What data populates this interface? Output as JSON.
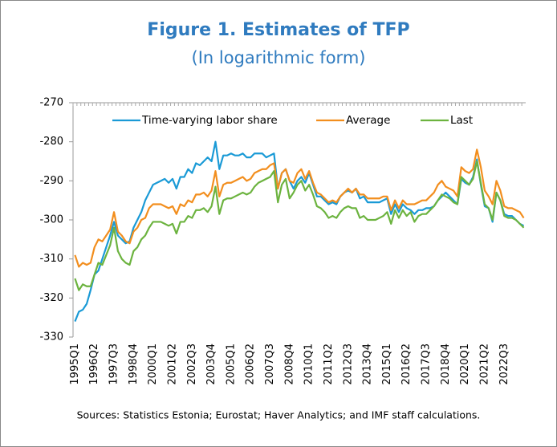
{
  "chart_data": {
    "type": "line",
    "title": "Figure 1. Estimates of TFP",
    "subtitle": "(In logarithmic form)",
    "source": "Sources: Statistics Estonia; Eurostat; Haver Analytics; and IMF staff calculations.",
    "categories": [
      "1995Q1",
      null,
      null,
      null,
      null,
      "1996Q2",
      null,
      null,
      null,
      null,
      "1997Q3",
      null,
      null,
      null,
      null,
      "1998Q4",
      null,
      null,
      null,
      null,
      "2000Q1",
      null,
      null,
      null,
      null,
      "2001Q2",
      null,
      null,
      null,
      null,
      "2002Q3",
      null,
      null,
      null,
      null,
      "2003Q4",
      null,
      null,
      null,
      null,
      "2005Q1",
      null,
      null,
      null,
      null,
      "2006Q2",
      null,
      null,
      null,
      null,
      "2007Q3",
      null,
      null,
      null,
      null,
      "2008Q4",
      null,
      null,
      null,
      null,
      "2010Q1",
      null,
      null,
      null,
      null,
      "2011Q2",
      null,
      null,
      null,
      null,
      "2012Q3",
      null,
      null,
      null,
      null,
      "2013Q4",
      null,
      null,
      null,
      null,
      "2015Q1",
      null,
      null,
      null,
      null,
      "2016Q2",
      null,
      null,
      null,
      null,
      "2017Q3",
      null,
      null,
      null,
      null,
      "2018Q4",
      null,
      null,
      null,
      null,
      "2020Q1",
      null,
      null,
      null,
      null,
      "2021Q2",
      null,
      null,
      null,
      null,
      "2022Q3",
      null,
      null,
      null,
      null,
      null
    ],
    "series": [
      {
        "name": "Time-varying labor share",
        "color": "#1a9ad6",
        "values": [
          -326,
          -323.5,
          -323,
          -321.5,
          -318,
          -314,
          -313,
          -310,
          -307,
          -304,
          -300.5,
          -304,
          -305,
          -306,
          -305.5,
          -302,
          -300,
          -298,
          -295,
          -293,
          -291,
          -290.5,
          -290,
          -289.5,
          -290.5,
          -289.5,
          -292,
          -289,
          -289,
          -287,
          -288,
          -285.5,
          -286,
          -285,
          -284,
          -285,
          -280,
          -287,
          -283.5,
          -283.5,
          -283,
          -283.5,
          -283.5,
          -283,
          -284,
          -284,
          -283,
          -283,
          -283,
          -284,
          -283.5,
          -283,
          -292,
          -288,
          -287,
          -290,
          -292,
          -290,
          -289,
          -290.5,
          -288,
          -291,
          -294,
          -294,
          -295,
          -296,
          -295.5,
          -296,
          -294,
          -293,
          -292.5,
          -293,
          -292,
          -294.5,
          -294,
          -295.5,
          -295.5,
          -295.5,
          -295.5,
          -295,
          -294.5,
          -298.5,
          -296,
          -298,
          -296,
          -297,
          -297.5,
          -298.5,
          -297.5,
          -297.5,
          -297,
          -297,
          -296.5,
          -295,
          -294,
          -293,
          -294,
          -295,
          -296,
          -289.5,
          -290.5,
          -291,
          -289,
          -284.5,
          -291,
          -296.5,
          -297,
          -300.5,
          -293,
          -295,
          -298.5,
          -299,
          -299,
          -300,
          -301,
          -301.5
        ]
      },
      {
        "name": "Average",
        "color": "#f28e1e",
        "values": [
          -309,
          -312,
          -311,
          -311.5,
          -311,
          -307,
          -305,
          -305.5,
          -304,
          -302.5,
          -298,
          -303,
          -304,
          -305.5,
          -306,
          -303,
          -302,
          -300,
          -299.5,
          -297,
          -296,
          -296,
          -296,
          -296.5,
          -297,
          -296.5,
          -298.5,
          -296,
          -296.5,
          -295,
          -295.5,
          -293.5,
          -293.5,
          -293,
          -294,
          -292.5,
          -287.5,
          -294,
          -291,
          -290.5,
          -290.5,
          -290,
          -289.5,
          -289,
          -290,
          -289.5,
          -288,
          -287.5,
          -287,
          -287,
          -286,
          -285.5,
          -292,
          -288,
          -287,
          -290,
          -290.5,
          -288,
          -287,
          -289.5,
          -287.5,
          -290.5,
          -293,
          -293.5,
          -294.5,
          -295.5,
          -295,
          -295.5,
          -294,
          -293,
          -292,
          -293,
          -292,
          -293.5,
          -293.5,
          -294.5,
          -294.5,
          -294.5,
          -294.5,
          -294,
          -294,
          -297.5,
          -295,
          -297,
          -295,
          -296,
          -296,
          -296,
          -295.5,
          -295,
          -295,
          -294,
          -293,
          -291,
          -290,
          -291.5,
          -292,
          -292.5,
          -294,
          -286.5,
          -287.5,
          -288,
          -287,
          -282,
          -286.5,
          -292.5,
          -294,
          -296,
          -290,
          -292.5,
          -296.5,
          -297,
          -297,
          -297.5,
          -298,
          -299.5
        ]
      },
      {
        "name": "Last",
        "color": "#6cb33f",
        "values": [
          -315,
          -318,
          -316.5,
          -317,
          -317,
          -314,
          -311,
          -311.5,
          -309,
          -306.5,
          -302,
          -308,
          -310,
          -311,
          -311.5,
          -308,
          -307,
          -305,
          -304,
          -302,
          -300.5,
          -300.5,
          -300.5,
          -301,
          -301.5,
          -301,
          -303.5,
          -300.5,
          -300.5,
          -299,
          -299.5,
          -297.5,
          -297.5,
          -297,
          -298,
          -296.5,
          -291.5,
          -298.5,
          -295,
          -294.5,
          -294.5,
          -294,
          -293.5,
          -293,
          -293.5,
          -293,
          -291.5,
          -290.5,
          -290,
          -289.5,
          -289,
          -287.5,
          -295.5,
          -291,
          -289.5,
          -294.5,
          -293,
          -291,
          -290,
          -292.5,
          -291,
          -293.5,
          -296.5,
          -297,
          -298,
          -299.5,
          -299,
          -299.5,
          -298,
          -297,
          -296.5,
          -297,
          -297,
          -299.5,
          -299,
          -300,
          -300,
          -300,
          -299.5,
          -299,
          -298,
          -301,
          -297.5,
          -299.5,
          -297.5,
          -299,
          -298,
          -300.5,
          -299,
          -298.5,
          -298.5,
          -297.5,
          -296.5,
          -295,
          -293.5,
          -294,
          -294.5,
          -295.5,
          -296,
          -289,
          -290,
          -291,
          -289.5,
          -285,
          -290.5,
          -296,
          -297,
          -300,
          -293,
          -295,
          -299,
          -299.5,
          -299.5,
          -300,
          -301,
          -302
        ]
      }
    ],
    "ylim": [
      -330,
      -270
    ],
    "yticks": [
      -330,
      -320,
      -310,
      -300,
      -290,
      -280,
      -270
    ],
    "grid": false
  }
}
